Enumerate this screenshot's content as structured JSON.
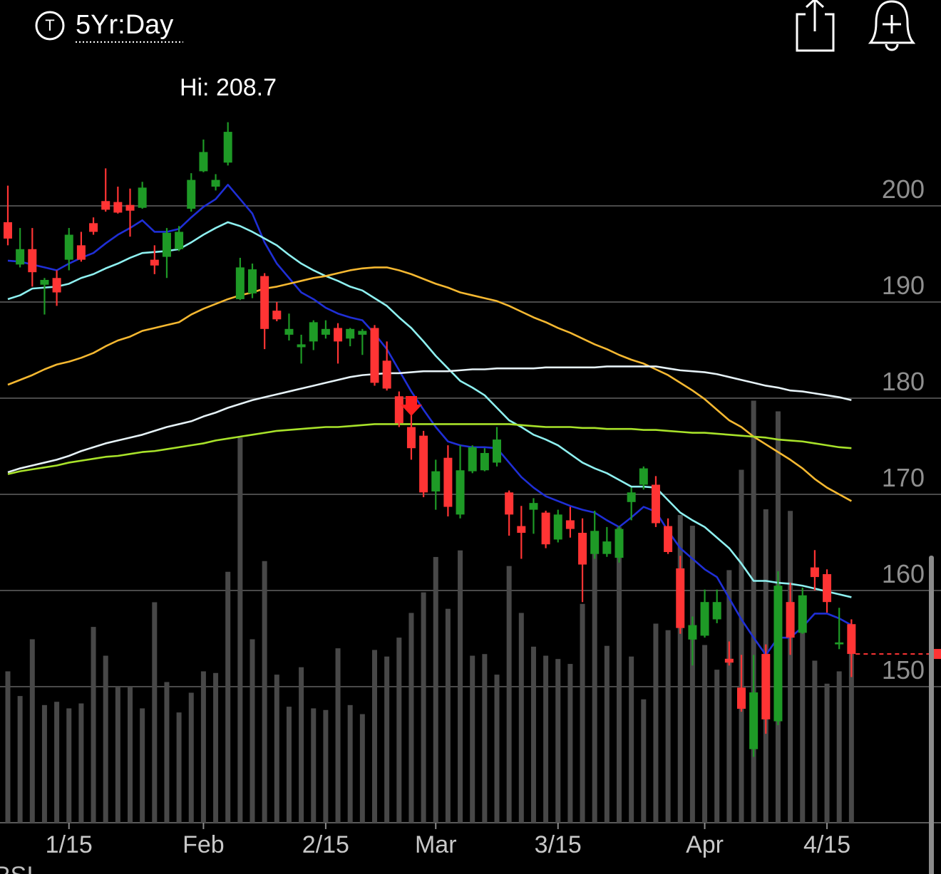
{
  "header": {
    "badge": "T",
    "range": "5Yr:Day"
  },
  "footer": {
    "indicator": "RSI"
  },
  "chart_data": {
    "type": "candlestick",
    "annotation": "Hi: 208.7",
    "categories": [
      null,
      null,
      null,
      null,
      null,
      "1/15",
      null,
      null,
      null,
      null,
      null,
      null,
      null,
      null,
      null,
      null,
      "Feb",
      null,
      null,
      null,
      null,
      null,
      null,
      null,
      null,
      null,
      "2/15",
      null,
      null,
      null,
      null,
      null,
      null,
      null,
      null,
      "Mar",
      null,
      null,
      null,
      null,
      null,
      null,
      null,
      null,
      null,
      "3/15",
      null,
      null,
      null,
      null,
      null,
      null,
      null,
      null,
      null,
      null,
      null,
      "Apr",
      null,
      null,
      null,
      null,
      null,
      null,
      null,
      null,
      null,
      "4/15",
      null,
      null
    ],
    "open": [
      198.3,
      193.9,
      195.5,
      191.8,
      192.5,
      194.4,
      195.9,
      198.2,
      200.5,
      200.4,
      200.1,
      199.8,
      194.4,
      194.7,
      195.5,
      199.7,
      203.6,
      202.0,
      204.5,
      190.3,
      190.9,
      192.7,
      189.1,
      186.6,
      185.3,
      185.9,
      186.6,
      187.3,
      186.2,
      186.6,
      187.3,
      183.9,
      180.2,
      177.0,
      176.1,
      170.3,
      173.8,
      167.9,
      172.4,
      172.5,
      173.3,
      170.2,
      166.7,
      168.4,
      168.1,
      165.3,
      167.3,
      166.0,
      163.8,
      163.8,
      163.4,
      169.2,
      171.0,
      171.0,
      166.7,
      162.3,
      154.9,
      155.3,
      157.0,
      152.9,
      149.9,
      143.5,
      153.4,
      146.4,
      158.8,
      155.6,
      162.4,
      161.7,
      154.4,
      156.5
    ],
    "high": [
      202.1,
      197.7,
      197.7,
      192.5,
      193.3,
      197.7,
      197.3,
      198.8,
      203.9,
      202.0,
      201.8,
      202.5,
      195.9,
      197.7,
      197.9,
      203.4,
      206.9,
      203.3,
      208.7,
      194.6,
      194.0,
      193.0,
      190.0,
      188.8,
      186.6,
      188.1,
      188.1,
      187.8,
      187.3,
      187.2,
      187.6,
      185.9,
      180.7,
      179.9,
      176.6,
      173.6,
      175.1,
      175.1,
      175.1,
      174.8,
      177.0,
      170.4,
      168.8,
      169.6,
      168.3,
      168.4,
      168.7,
      167.5,
      168.3,
      166.6,
      166.7,
      170.7,
      172.9,
      171.9,
      167.5,
      163.6,
      157.3,
      160.1,
      160.1,
      154.7,
      153.3,
      153.3,
      154.4,
      162.0,
      160.8,
      160.3,
      164.2,
      162.2,
      158.2,
      157.0
    ],
    "low": [
      195.9,
      193.6,
      191.6,
      188.7,
      189.6,
      193.3,
      194.2,
      197.0,
      199.4,
      199.2,
      196.8,
      199.7,
      192.9,
      192.5,
      195.3,
      199.4,
      203.5,
      201.6,
      204.2,
      190.2,
      190.4,
      185.1,
      188.0,
      186.0,
      183.6,
      185.0,
      186.2,
      183.6,
      185.4,
      184.5,
      181.3,
      180.8,
      177.0,
      173.6,
      169.7,
      168.4,
      167.7,
      167.5,
      172.2,
      172.4,
      172.9,
      165.7,
      163.3,
      165.9,
      164.4,
      165.0,
      165.5,
      158.8,
      163.3,
      163.5,
      162.9,
      167.3,
      170.5,
      166.6,
      163.8,
      155.5,
      152.2,
      155.1,
      156.6,
      152.2,
      147.4,
      142.7,
      145.1,
      146.0,
      153.3,
      155.5,
      160.0,
      157.7,
      153.9,
      151.0
    ],
    "close": [
      196.6,
      195.5,
      193.1,
      192.3,
      191.0,
      197.0,
      194.4,
      197.3,
      199.6,
      199.3,
      199.5,
      201.9,
      193.8,
      197.2,
      197.3,
      202.7,
      205.6,
      202.7,
      207.7,
      193.6,
      193.4,
      187.2,
      188.2,
      187.2,
      185.6,
      187.9,
      187.2,
      185.9,
      187.2,
      187.0,
      181.6,
      181.0,
      177.4,
      174.8,
      170.2,
      172.4,
      168.7,
      172.5,
      174.9,
      174.3,
      175.7,
      167.9,
      166.0,
      169.1,
      164.8,
      167.9,
      166.4,
      162.7,
      166.2,
      165.1,
      166.4,
      170.2,
      172.7,
      167.0,
      164.0,
      156.1,
      156.4,
      158.8,
      158.8,
      152.5,
      147.7,
      149.4,
      146.6,
      160.5,
      155.1,
      159.5,
      161.4,
      158.8,
      154.6,
      153.4
    ],
    "volume": [
      18.4,
      15.4,
      22.3,
      14.3,
      14.7,
      13.9,
      14.5,
      23.8,
      20.3,
      16.6,
      16.5,
      13.9,
      26.8,
      17.1,
      13.4,
      15.8,
      18.4,
      18.2,
      30.5,
      46.8,
      22.3,
      31.8,
      18.0,
      14.1,
      18.9,
      13.9,
      13.7,
      21.2,
      14.3,
      13.2,
      21.0,
      20.2,
      22.5,
      25.5,
      28.0,
      32.3,
      26.0,
      33.1,
      20.3,
      20.5,
      18.0,
      31.2,
      25.5,
      21.4,
      20.3,
      19.9,
      19.3,
      26.6,
      33.8,
      21.5,
      35.9,
      20.2,
      15.0,
      24.2,
      23.4,
      37.4,
      36.1,
      21.6,
      18.6,
      30.7,
      42.9,
      51.3,
      38.1,
      50.0,
      37.9,
      23.8,
      19.7,
      16.9,
      18.4,
      21.2
    ],
    "moving_averages": [
      {
        "color": "#1f2fd6",
        "values": [
          194.3,
          194.2,
          193.9,
          193.6,
          193.3,
          194.0,
          194.6,
          195.1,
          196.1,
          197.0,
          197.7,
          198.5,
          197.3,
          197.3,
          197.6,
          198.8,
          199.9,
          200.7,
          202.2,
          200.7,
          199.2,
          196.2,
          194.0,
          192.5,
          191.0,
          190.3,
          189.4,
          188.8,
          188.4,
          188.1,
          186.7,
          185.1,
          182.9,
          180.7,
          178.8,
          177.0,
          175.5,
          175.1,
          174.9,
          174.9,
          174.8,
          173.3,
          171.8,
          170.7,
          169.8,
          169.3,
          168.8,
          168.4,
          168.1,
          167.3,
          166.6,
          167.6,
          168.7,
          168.2,
          166.2,
          164.4,
          163.3,
          162.2,
          161.4,
          159.2,
          157.0,
          155.1,
          153.3,
          155.1,
          155.1,
          156.2,
          157.6,
          157.6,
          157.1,
          156.4
        ]
      },
      {
        "color": "#8ef0f0",
        "values": [
          190.3,
          190.7,
          191.4,
          191.5,
          191.6,
          191.9,
          192.5,
          192.9,
          193.5,
          194.0,
          194.6,
          195.1,
          195.2,
          195.3,
          195.5,
          196.2,
          197.0,
          197.7,
          198.3,
          197.9,
          197.3,
          196.6,
          195.9,
          194.9,
          194.0,
          193.3,
          192.7,
          192.2,
          191.6,
          191.2,
          190.4,
          189.6,
          188.4,
          187.3,
          185.9,
          184.4,
          183.1,
          181.8,
          181.1,
          180.3,
          179.0,
          177.7,
          177.0,
          176.2,
          175.7,
          175.1,
          174.2,
          173.3,
          172.7,
          172.2,
          171.5,
          170.8,
          170.8,
          170.7,
          169.4,
          168.1,
          167.3,
          166.6,
          165.5,
          164.4,
          162.8,
          161.0,
          161.0,
          160.8,
          160.7,
          160.5,
          160.2,
          159.9,
          159.6,
          159.3
        ]
      },
      {
        "color": "#f5b831",
        "values": [
          181.4,
          181.9,
          182.4,
          183.0,
          183.5,
          183.8,
          184.2,
          184.7,
          185.4,
          186.0,
          186.4,
          187.0,
          187.3,
          187.6,
          187.9,
          188.7,
          189.3,
          189.8,
          190.3,
          190.7,
          191.0,
          191.4,
          191.6,
          191.9,
          192.2,
          192.5,
          192.7,
          193.0,
          193.3,
          193.5,
          193.6,
          193.6,
          193.3,
          192.9,
          192.4,
          191.9,
          191.5,
          191.0,
          190.7,
          190.4,
          190.1,
          189.6,
          189.0,
          188.4,
          187.9,
          187.3,
          186.8,
          186.2,
          185.6,
          185.1,
          184.5,
          184.0,
          183.6,
          183.0,
          182.4,
          181.6,
          180.8,
          179.9,
          178.8,
          177.7,
          177.0,
          176.0,
          175.2,
          174.4,
          173.6,
          172.7,
          171.6,
          170.7,
          170.0,
          169.3
        ]
      },
      {
        "color": "#e6f2f7",
        "values": [
          172.3,
          172.7,
          173.0,
          173.3,
          173.6,
          174.0,
          174.5,
          174.9,
          175.3,
          175.6,
          175.9,
          176.2,
          176.6,
          177.0,
          177.3,
          177.6,
          178.1,
          178.5,
          179.0,
          179.4,
          179.8,
          180.1,
          180.4,
          180.7,
          181.0,
          181.3,
          181.6,
          181.9,
          182.2,
          182.4,
          182.5,
          182.6,
          182.6,
          182.7,
          182.8,
          182.8,
          182.8,
          182.9,
          183.0,
          183.0,
          183.1,
          183.1,
          183.1,
          183.1,
          183.2,
          183.2,
          183.2,
          183.2,
          183.2,
          183.3,
          183.3,
          183.3,
          183.3,
          183.3,
          183.1,
          182.9,
          182.8,
          182.7,
          182.5,
          182.2,
          181.9,
          181.6,
          181.3,
          181.1,
          180.8,
          180.7,
          180.5,
          180.3,
          180.1,
          179.8
        ]
      },
      {
        "color": "#a8e22a",
        "values": [
          172.1,
          172.4,
          172.6,
          172.8,
          173.0,
          173.3,
          173.5,
          173.7,
          173.9,
          174.0,
          174.2,
          174.4,
          174.5,
          174.7,
          174.9,
          175.1,
          175.3,
          175.6,
          175.8,
          176.0,
          176.2,
          176.4,
          176.6,
          176.7,
          176.8,
          176.9,
          177.0,
          177.0,
          177.1,
          177.2,
          177.3,
          177.3,
          177.3,
          177.3,
          177.3,
          177.3,
          177.3,
          177.3,
          177.3,
          177.3,
          177.3,
          177.3,
          177.2,
          177.1,
          177.0,
          177.0,
          177.0,
          176.9,
          176.9,
          176.8,
          176.8,
          176.8,
          176.7,
          176.7,
          176.6,
          176.5,
          176.4,
          176.4,
          176.3,
          176.2,
          176.1,
          176.0,
          175.9,
          175.7,
          175.6,
          175.5,
          175.3,
          175.1,
          174.9,
          174.8
        ]
      }
    ],
    "up_color": "#1e9a26",
    "down_color": "#ff3434",
    "volume_color": "#484848",
    "ylim": [
      135.85,
      221.41
    ],
    "yticks": [
      150,
      160,
      170,
      180,
      190,
      200
    ],
    "y2lim": [
      0,
      100
    ],
    "grid": true
  }
}
